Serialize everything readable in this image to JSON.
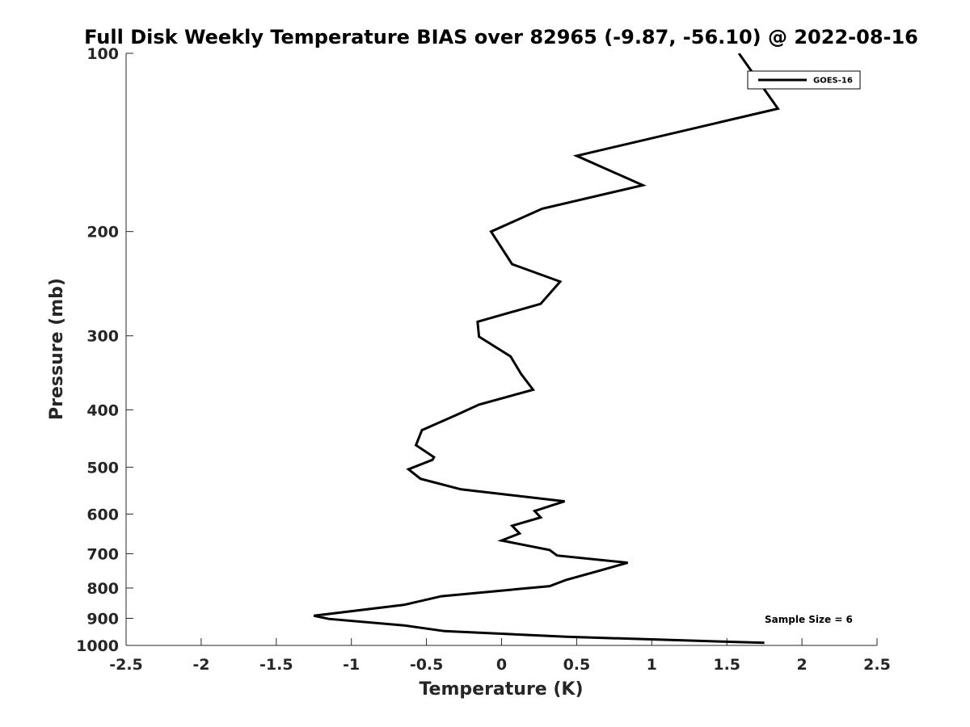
{
  "chart_data": {
    "type": "line",
    "title": "Full Disk Weekly Temperature BIAS over 82965 (-9.87, -56.10) @ 2022-08-16",
    "xlabel": "Temperature (K)",
    "ylabel": "Pressure (mb)",
    "xlim": [
      -2.5,
      2.5
    ],
    "ylim": [
      100,
      1000
    ],
    "y_scale": "log",
    "y_reversed": true,
    "x_ticks": [
      "-2.5",
      "-2",
      "-1.5",
      "-1",
      "-0.5",
      "0",
      "0.5",
      "1",
      "1.5",
      "2",
      "2.5"
    ],
    "y_ticks": [
      "100",
      "200",
      "300",
      "400",
      "500",
      "600",
      "700",
      "800",
      "900",
      "1000"
    ],
    "grid": false,
    "legend_position": "top-right",
    "annotation": "Sample Size = 6",
    "series": [
      {
        "name": "GOES-16",
        "color": "#000000",
        "x": [
          1.58,
          1.84,
          0.5,
          0.94,
          0.27,
          -0.07,
          0.07,
          0.39,
          0.26,
          -0.16,
          -0.15,
          0.06,
          0.13,
          0.21,
          -0.15,
          -0.3,
          -0.53,
          -0.57,
          -0.45,
          -0.46,
          -0.62,
          -0.54,
          -0.27,
          0.42,
          0.22,
          0.26,
          0.07,
          0.12,
          0.0,
          0.32,
          0.37,
          0.84,
          0.65,
          0.43,
          0.32,
          -0.4,
          -0.65,
          -1.25,
          -1.15,
          -0.65,
          -0.38,
          0.43,
          1.75
        ],
        "y": [
          100,
          124,
          149,
          167,
          183,
          200,
          227,
          243,
          265,
          284,
          301,
          325,
          348,
          370,
          392,
          408,
          433,
          459,
          481,
          486,
          504,
          523,
          545,
          571,
          593,
          608,
          628,
          647,
          665,
          690,
          705,
          725,
          748,
          775,
          794,
          826,
          854,
          891,
          902,
          925,
          946,
          967,
          990
        ]
      }
    ]
  }
}
